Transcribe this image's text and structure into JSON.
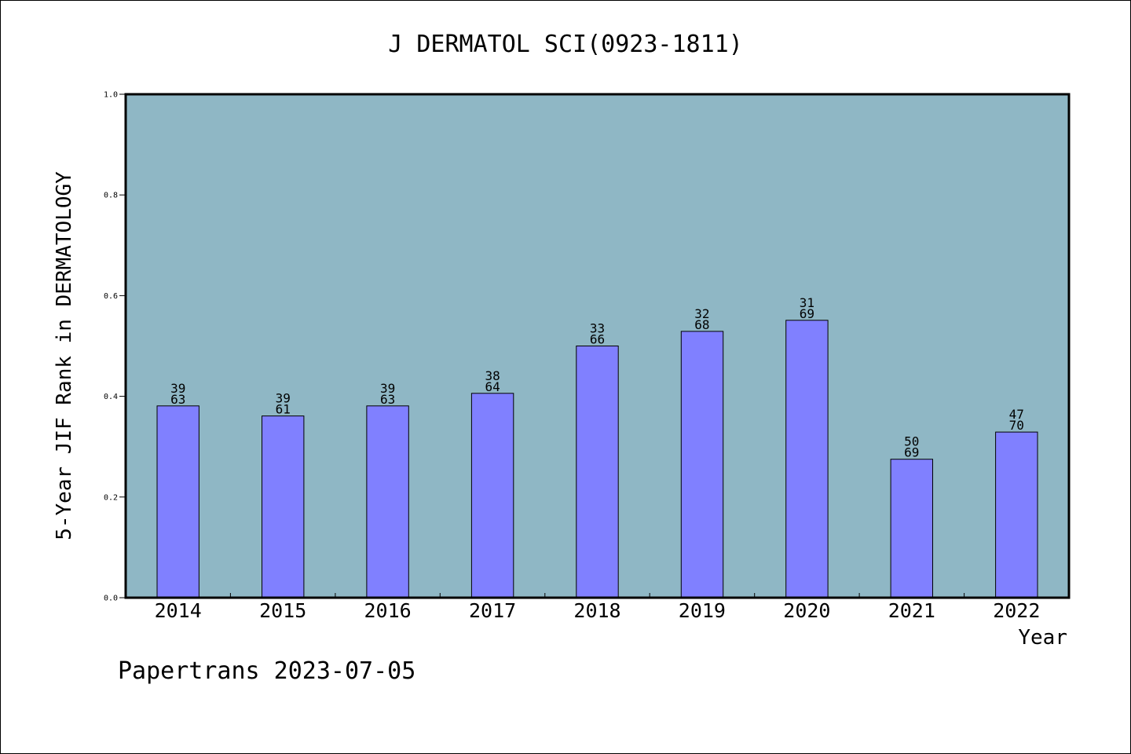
{
  "chart_data": {
    "type": "bar",
    "title": "J DERMATOL SCI(0923-1811)",
    "xlabel": "Year",
    "ylabel": "5-Year JIF Rank in DERMATOLOGY",
    "categories": [
      "2014",
      "2015",
      "2016",
      "2017",
      "2018",
      "2019",
      "2020",
      "2021",
      "2022"
    ],
    "values": [
      0.381,
      0.361,
      0.381,
      0.406,
      0.5,
      0.529,
      0.551,
      0.275,
      0.329
    ],
    "bar_labels": [
      [
        "39",
        "63"
      ],
      [
        "39",
        "61"
      ],
      [
        "39",
        "63"
      ],
      [
        "38",
        "64"
      ],
      [
        "33",
        "66"
      ],
      [
        "32",
        "68"
      ],
      [
        "31",
        "69"
      ],
      [
        "50",
        "69"
      ],
      [
        "47",
        "70"
      ]
    ],
    "ylim": [
      0,
      1.0
    ],
    "yticks": [
      "0.0",
      "0.2",
      "0.4",
      "0.6",
      "0.8",
      "1.0"
    ],
    "grid": false,
    "plot_background": "#8fb7c5",
    "bar_color": "#8080ff",
    "bar_edge_color": "#000000"
  },
  "footer": {
    "text": "Papertrans 2023-07-05"
  }
}
